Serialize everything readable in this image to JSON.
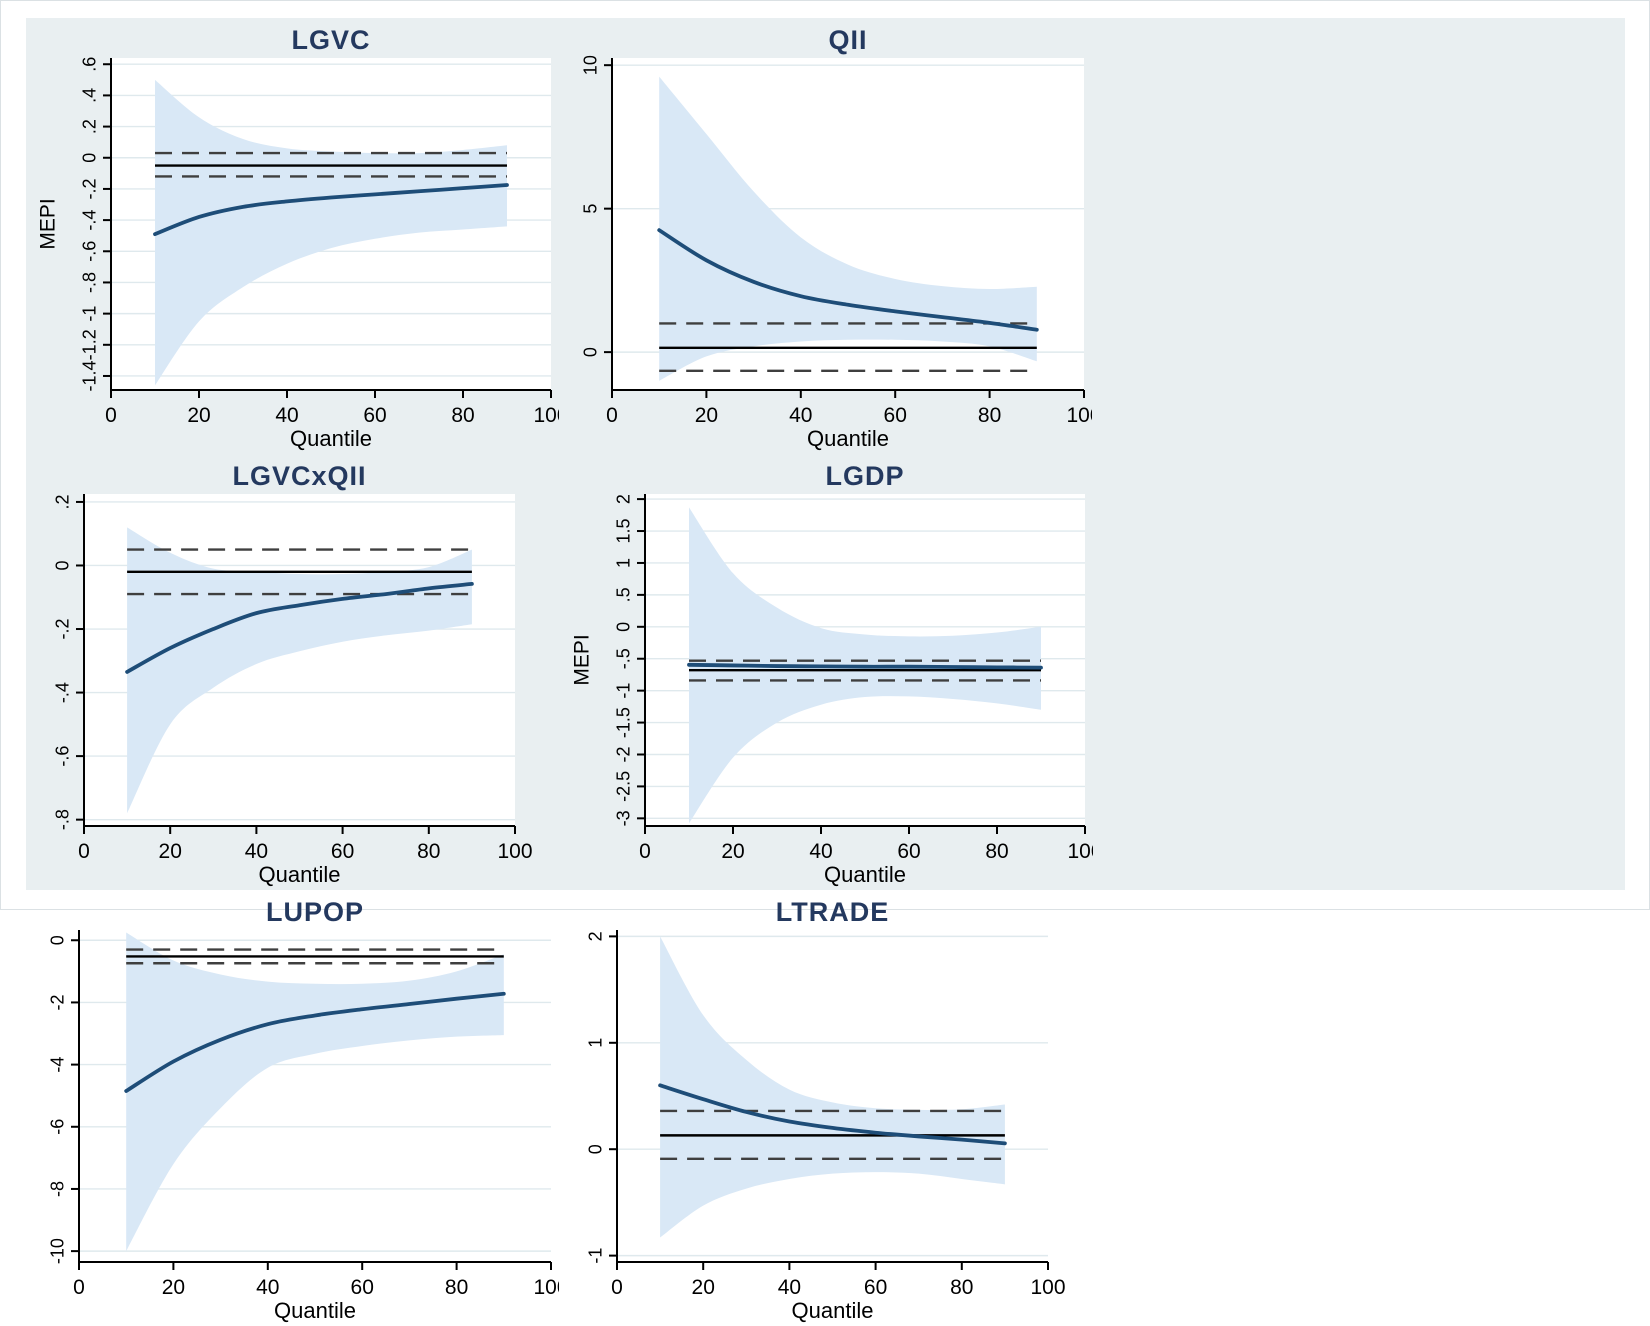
{
  "figure": {
    "xlabel": "Quantile",
    "x_ticks": [
      0,
      20,
      40,
      60,
      80,
      100
    ],
    "style": {
      "figure_bg": "#e9eff1",
      "plot_bg": "#ffffff",
      "grid_color": "#dfe9ed",
      "title_color": "#24395f",
      "curve_color": "#1e4d78",
      "band_color": "#d9e8f6",
      "ols_line_color": "#000000",
      "ols_ci_color": "#3f3f3f",
      "axis_color": "#000000"
    }
  },
  "chart_data": [
    {
      "type": "area",
      "title": "LGVC",
      "ylabel": "MEPI",
      "xlabel": "Quantile",
      "xlim": [
        0,
        100
      ],
      "ylim": [
        -1.49,
        0.64
      ],
      "y_ticks": [
        0.6,
        0.4,
        0.2,
        0,
        -0.2,
        -0.4,
        -0.6,
        -0.8,
        -1,
        -1.2,
        -1.4
      ],
      "y_tick_labels": [
        ".6",
        ".4",
        ".2",
        "0",
        "-.2",
        "-.4",
        "-.6",
        "-.8",
        "-1",
        "-1.2",
        "-1.4"
      ],
      "x": [
        10,
        20,
        30,
        40,
        50,
        60,
        70,
        80,
        90
      ],
      "series": [
        {
          "name": "quantile-estimate",
          "values": [
            -0.49,
            -0.38,
            -0.315,
            -0.28,
            -0.255,
            -0.235,
            -0.215,
            -0.195,
            -0.175
          ]
        },
        {
          "name": "ci-upper",
          "values": [
            0.5,
            0.26,
            0.12,
            0.06,
            0.04,
            0.03,
            0.03,
            0.05,
            0.08
          ]
        },
        {
          "name": "ci-lower",
          "values": [
            -1.46,
            -1.05,
            -0.83,
            -0.68,
            -0.58,
            -0.52,
            -0.48,
            -0.46,
            -0.44
          ]
        }
      ],
      "ols": {
        "estimate": -0.05,
        "upper": 0.03,
        "lower": -0.12
      }
    },
    {
      "type": "area",
      "title": "QII",
      "ylabel": "",
      "xlabel": "Quantile",
      "xlim": [
        0,
        100
      ],
      "ylim": [
        -1.32,
        10.25
      ],
      "y_ticks": [
        10,
        5,
        0
      ],
      "y_tick_labels": [
        "10",
        "5",
        "0"
      ],
      "x": [
        10,
        20,
        30,
        40,
        50,
        60,
        70,
        80,
        90
      ],
      "series": [
        {
          "name": "quantile-estimate",
          "values": [
            4.25,
            3.2,
            2.45,
            1.95,
            1.65,
            1.42,
            1.22,
            1.02,
            0.78
          ]
        },
        {
          "name": "ci-upper",
          "values": [
            9.6,
            7.6,
            5.6,
            4.0,
            3.05,
            2.55,
            2.3,
            2.2,
            2.28
          ]
        },
        {
          "name": "ci-lower",
          "values": [
            -1.0,
            -0.15,
            0.2,
            0.37,
            0.43,
            0.43,
            0.37,
            0.2,
            -0.32
          ]
        }
      ],
      "ols": {
        "estimate": 0.15,
        "upper": 1.0,
        "lower": -0.65
      }
    },
    {
      "type": "area",
      "title": "LGVCxQII",
      "ylabel": "",
      "xlabel": "Quantile",
      "xlim": [
        0,
        100
      ],
      "ylim": [
        -0.82,
        0.225
      ],
      "y_ticks": [
        0.2,
        0,
        -0.2,
        -0.4,
        -0.6,
        -0.8
      ],
      "y_tick_labels": [
        ".2",
        "0",
        "-.2",
        "-.4",
        "-.6",
        "-.8"
      ],
      "x": [
        10,
        20,
        30,
        40,
        50,
        60,
        70,
        80,
        90
      ],
      "series": [
        {
          "name": "quantile-estimate",
          "values": [
            -0.335,
            -0.26,
            -0.2,
            -0.15,
            -0.125,
            -0.105,
            -0.09,
            -0.072,
            -0.058
          ]
        },
        {
          "name": "ci-upper",
          "values": [
            0.12,
            0.04,
            -0.01,
            -0.02,
            -0.027,
            -0.027,
            -0.02,
            -0.005,
            0.05
          ]
        },
        {
          "name": "ci-lower",
          "values": [
            -0.78,
            -0.5,
            -0.385,
            -0.31,
            -0.27,
            -0.24,
            -0.22,
            -0.205,
            -0.185
          ]
        }
      ],
      "ols": {
        "estimate": -0.02,
        "upper": 0.05,
        "lower": -0.09
      }
    },
    {
      "type": "area",
      "title": "LGDP",
      "ylabel": "MEPI",
      "xlabel": "Quantile",
      "xlim": [
        0,
        100
      ],
      "ylim": [
        -3.12,
        2.08
      ],
      "y_ticks": [
        2,
        1.5,
        1,
        0.5,
        0,
        -0.5,
        -1,
        -1.5,
        -2,
        -2.5,
        -3
      ],
      "y_tick_labels": [
        "2",
        "1.5",
        "1",
        ".5",
        "0",
        "-.5",
        "-1",
        "-1.5",
        "-2",
        "-2.5",
        "-3"
      ],
      "x": [
        10,
        20,
        30,
        40,
        50,
        60,
        70,
        80,
        90
      ],
      "series": [
        {
          "name": "quantile-estimate",
          "values": [
            -0.595,
            -0.605,
            -0.615,
            -0.62,
            -0.625,
            -0.625,
            -0.63,
            -0.635,
            -0.64
          ]
        },
        {
          "name": "ci-upper",
          "values": [
            1.87,
            0.84,
            0.3,
            -0.02,
            -0.12,
            -0.15,
            -0.14,
            -0.09,
            0.0
          ]
        },
        {
          "name": "ci-lower",
          "values": [
            -3.08,
            -2.05,
            -1.5,
            -1.22,
            -1.1,
            -1.09,
            -1.13,
            -1.2,
            -1.3
          ]
        }
      ],
      "ols": {
        "estimate": -0.68,
        "upper": -0.53,
        "lower": -0.84
      }
    },
    {
      "type": "area",
      "title": "LUPOP",
      "ylabel": "",
      "xlabel": "Quantile",
      "xlim": [
        0,
        100
      ],
      "ylim": [
        -10.35,
        0.33
      ],
      "y_ticks": [
        0,
        -2,
        -4,
        -6,
        -8,
        -10
      ],
      "y_tick_labels": [
        "0",
        "-2",
        "-4",
        "-6",
        "-8",
        "-10"
      ],
      "x": [
        10,
        20,
        30,
        40,
        50,
        60,
        70,
        80,
        90
      ],
      "series": [
        {
          "name": "quantile-estimate",
          "values": [
            -4.85,
            -3.9,
            -3.2,
            -2.7,
            -2.42,
            -2.22,
            -2.05,
            -1.88,
            -1.72
          ]
        },
        {
          "name": "ci-upper",
          "values": [
            0.25,
            -0.65,
            -1.1,
            -1.33,
            -1.4,
            -1.4,
            -1.3,
            -1.0,
            -0.45
          ]
        },
        {
          "name": "ci-lower",
          "values": [
            -10.0,
            -7.2,
            -5.4,
            -4.1,
            -3.65,
            -3.4,
            -3.22,
            -3.1,
            -3.05
          ]
        }
      ],
      "ols": {
        "estimate": -0.52,
        "upper": -0.3,
        "lower": -0.74
      }
    },
    {
      "type": "area",
      "title": "LTRADE",
      "ylabel": "",
      "xlabel": "Quantile",
      "xlim": [
        0,
        100
      ],
      "ylim": [
        -1.06,
        2.06
      ],
      "y_ticks": [
        2,
        1,
        0,
        -1
      ],
      "y_tick_labels": [
        "2",
        "1",
        "0",
        "-1"
      ],
      "x": [
        10,
        20,
        30,
        40,
        50,
        60,
        70,
        80,
        90
      ],
      "series": [
        {
          "name": "quantile-estimate",
          "values": [
            0.6,
            0.47,
            0.35,
            0.26,
            0.2,
            0.155,
            0.12,
            0.09,
            0.055
          ]
        },
        {
          "name": "ci-upper",
          "values": [
            2.0,
            1.26,
            0.84,
            0.56,
            0.44,
            0.385,
            0.37,
            0.375,
            0.42
          ]
        },
        {
          "name": "ci-lower",
          "values": [
            -0.83,
            -0.53,
            -0.37,
            -0.28,
            -0.23,
            -0.215,
            -0.23,
            -0.28,
            -0.33
          ]
        }
      ],
      "ols": {
        "estimate": 0.13,
        "upper": 0.36,
        "lower": -0.09
      }
    }
  ]
}
